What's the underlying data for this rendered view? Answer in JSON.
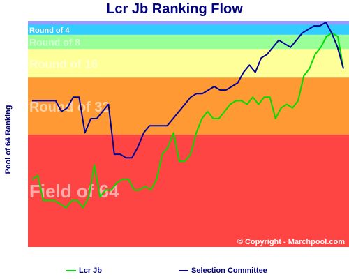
{
  "chart_data": {
    "type": "line",
    "title": "Lcr Jb Ranking Flow",
    "xlabel": "",
    "ylabel": "Pool of 64 Ranking",
    "ylim": [
      1,
      64
    ],
    "y_direction": "rank 1 at top",
    "bands": [
      {
        "label": "Round of 4",
        "from": 1,
        "to": 4,
        "color": "#33ccff"
      },
      {
        "label": "Round of 8",
        "from": 5,
        "to": 8,
        "color": "#99ff99"
      },
      {
        "label": "Round of 16",
        "from": 9,
        "to": 16,
        "color": "#ffff99"
      },
      {
        "label": "Round of 32",
        "from": 17,
        "to": 32,
        "color": "#ff9933"
      },
      {
        "label": "Field of 64",
        "from": 33,
        "to": 64,
        "color": "#ff4444"
      }
    ],
    "series": [
      {
        "name": "Lcr Jb",
        "color": "#00dd00",
        "values": [
          45,
          44,
          51,
          51,
          51,
          52,
          53,
          51,
          51,
          53,
          50,
          41,
          50,
          48,
          48,
          46,
          45,
          45,
          48,
          48,
          47,
          48,
          45,
          38,
          36,
          32,
          40,
          40,
          38,
          32,
          28,
          26,
          28,
          28,
          26,
          24,
          23,
          23,
          24,
          22,
          24,
          22,
          22,
          28,
          25,
          24,
          25,
          23,
          16,
          14,
          10,
          8,
          5,
          4,
          5,
          14
        ]
      },
      {
        "name": "Selection Committee",
        "color": "#000099",
        "values": [
          23,
          23,
          23,
          23,
          23,
          26,
          25,
          22,
          22,
          32,
          28,
          28,
          26,
          24,
          38,
          38,
          39,
          39,
          36,
          32,
          30,
          30,
          30,
          30,
          28,
          26,
          24,
          22,
          21,
          21,
          20,
          19,
          20,
          20,
          19,
          18,
          15,
          13,
          15,
          11,
          10,
          8,
          6,
          7,
          8,
          6,
          4,
          3,
          2,
          2,
          1,
          4,
          8,
          14
        ]
      }
    ],
    "legend_placement": "bottom",
    "watermark": "© Copyright - Marchpool.com"
  }
}
